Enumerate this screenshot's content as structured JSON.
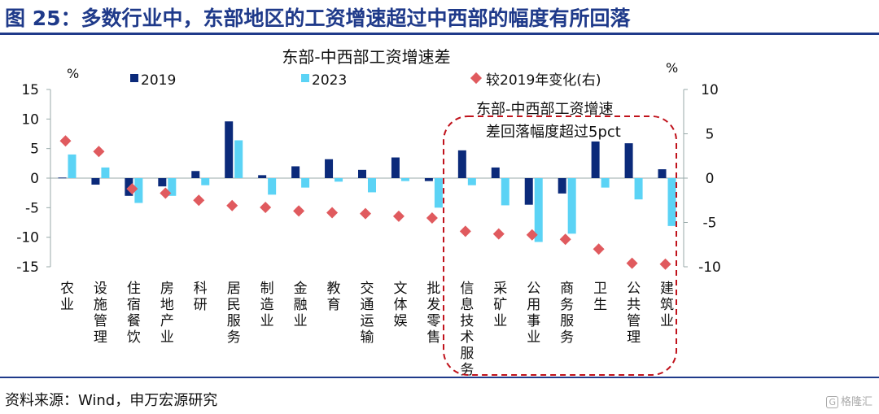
{
  "header": {
    "title": "图 25：多数行业中，东部地区的工资增速超过中西部的幅度有所回落"
  },
  "footer": {
    "source": "资料来源：Wind，申万宏源研究",
    "watermark_icon": "G",
    "watermark": "格隆汇"
  },
  "chart_data": {
    "type": "bar",
    "title": "东部-中西部工资增速差",
    "left_unit": "%",
    "right_unit": "%",
    "ylim_left": [
      -15,
      15
    ],
    "yticks_left": [
      "15",
      "10",
      "5",
      "0",
      "-5",
      "-10",
      "-15"
    ],
    "ylim_right": [
      -10,
      10
    ],
    "yticks_right": [
      "10",
      "5",
      "0",
      "-5",
      "-10"
    ],
    "categories": [
      "农业",
      "设施管理",
      "住宿餐饮",
      "房地产业",
      "科研",
      "居民服务",
      "制造业",
      "金融业",
      "教育",
      "交通运输",
      "文体娱",
      "批发零售",
      "信息技术服务",
      "采矿业",
      "公用事业",
      "商务服务",
      "卫生",
      "公共管理",
      "建筑业"
    ],
    "series": [
      {
        "name": "2019",
        "axis": "left",
        "color": "#0b2a7a",
        "values": [
          0.1,
          -1.1,
          -3.0,
          -1.4,
          1.2,
          9.6,
          0.5,
          2.0,
          3.2,
          1.4,
          3.5,
          -0.5,
          4.7,
          1.8,
          -4.5,
          -2.6,
          6.2,
          5.9,
          1.5
        ]
      },
      {
        "name": "2023",
        "axis": "left",
        "color": "#5bd3f5",
        "values": [
          4.0,
          1.8,
          -4.2,
          -3.0,
          -1.2,
          6.4,
          -2.8,
          -1.6,
          -0.6,
          -2.4,
          -0.5,
          -5.0,
          -1.2,
          -4.6,
          -10.8,
          -9.4,
          -1.6,
          -3.6,
          -8.1
        ]
      },
      {
        "name": "较2019年变化(右)",
        "axis": "right",
        "color": "#e05a5e",
        "values": [
          4.2,
          3.0,
          -1.2,
          -1.7,
          -2.5,
          -3.1,
          -3.3,
          -3.7,
          -3.9,
          -4.0,
          -4.3,
          -4.5,
          -6.0,
          -6.3,
          -6.4,
          -6.9,
          -8.0,
          -9.6,
          -9.7
        ]
      }
    ],
    "annotation": {
      "lines": [
        "东部-中西部工资增速",
        "差回落幅度超过5pct"
      ],
      "style": "dashed-rounded",
      "color": "#c0121b"
    }
  }
}
